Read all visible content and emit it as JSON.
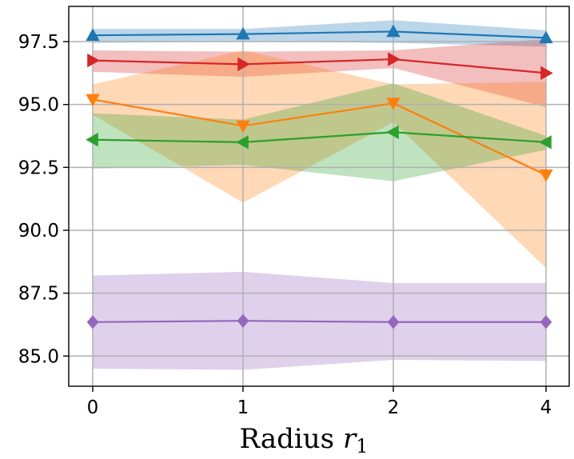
{
  "chart_data": {
    "type": "line",
    "title": "",
    "xlabel": "Radius",
    "xlabel_symbol": "r",
    "xlabel_subscript": "1",
    "ylabel": "",
    "categories": [
      "0",
      "1",
      "2",
      "4"
    ],
    "ylim": [
      83.8,
      98.9
    ],
    "yticks": [
      "85.0",
      "87.5",
      "90.0",
      "92.5",
      "95.0",
      "97.5"
    ],
    "grid": true,
    "series": [
      {
        "name": "blue",
        "color": "#1f77b4",
        "marker": "triangle-up",
        "values": [
          97.75,
          97.8,
          97.9,
          97.65
        ],
        "lower": [
          97.45,
          97.5,
          97.45,
          97.3
        ],
        "upper": [
          98.0,
          98.0,
          98.35,
          97.95
        ]
      },
      {
        "name": "red",
        "color": "#d62728",
        "marker": "triangle-right",
        "values": [
          96.75,
          96.6,
          96.8,
          96.25
        ],
        "lower": [
          96.3,
          96.1,
          96.45,
          94.9
        ],
        "upper": [
          97.15,
          97.1,
          97.15,
          97.6
        ]
      },
      {
        "name": "orange",
        "color": "#ff7f0e",
        "marker": "triangle-down",
        "values": [
          95.2,
          94.15,
          95.05,
          92.2
        ],
        "lower": [
          94.6,
          91.1,
          94.3,
          88.5
        ],
        "upper": [
          95.8,
          97.15,
          95.8,
          95.9
        ]
      },
      {
        "name": "green",
        "color": "#2ca02c",
        "marker": "triangle-left",
        "values": [
          93.6,
          93.5,
          93.9,
          93.5
        ],
        "lower": [
          92.45,
          92.6,
          91.95,
          93.2
        ],
        "upper": [
          94.65,
          94.4,
          95.85,
          93.75
        ]
      },
      {
        "name": "purple",
        "color": "#9467bd",
        "marker": "diamond",
        "values": [
          86.35,
          86.4,
          86.35,
          86.35
        ],
        "lower": [
          84.5,
          84.45,
          84.85,
          84.8
        ],
        "upper": [
          88.2,
          88.35,
          87.9,
          87.9
        ]
      }
    ]
  }
}
